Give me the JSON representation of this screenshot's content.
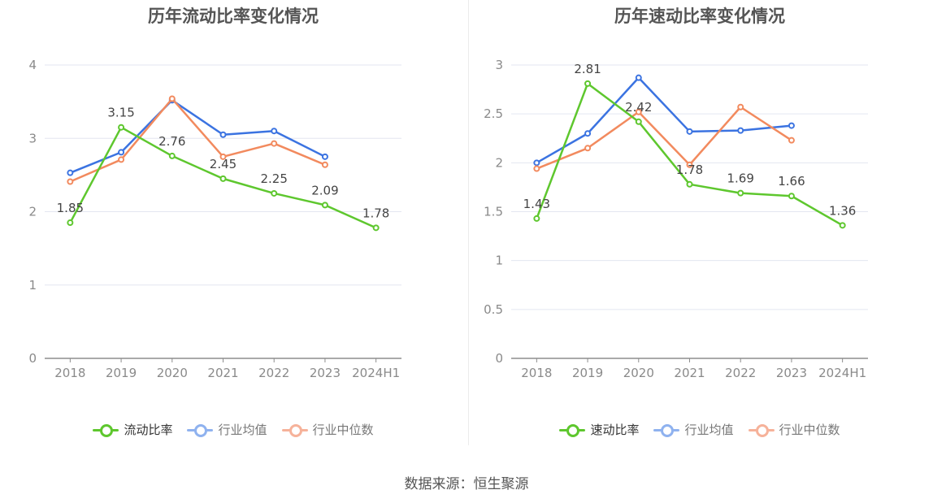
{
  "charts": [
    {
      "title": "历年流动比率变化情况",
      "legend": [
        {
          "label": "流动比率",
          "color": "#5ec72e",
          "dim": false
        },
        {
          "label": "行业均值",
          "color": "#8fb2ef",
          "dim": true
        },
        {
          "label": "行业中位数",
          "color": "#f6b29a",
          "dim": true
        }
      ]
    },
    {
      "title": "历年速动比率变化情况",
      "legend": [
        {
          "label": "速动比率",
          "color": "#5ec72e",
          "dim": false
        },
        {
          "label": "行业均值",
          "color": "#8fb2ef",
          "dim": true
        },
        {
          "label": "行业中位数",
          "color": "#f6b29a",
          "dim": true
        }
      ]
    }
  ],
  "source": "数据来源：恒生聚源",
  "chart_data": [
    {
      "type": "line",
      "title": "历年流动比率变化情况",
      "categories": [
        "2018",
        "2019",
        "2020",
        "2021",
        "2022",
        "2023",
        "2024H1"
      ],
      "ylim": [
        0,
        4
      ],
      "yticks": [
        "0",
        "1",
        "2",
        "3",
        "4"
      ],
      "grid": true,
      "legend_position": "bottom",
      "series": [
        {
          "name": "流动比率",
          "color": "#5ec72e",
          "labels": true,
          "values": [
            1.85,
            3.15,
            2.76,
            2.45,
            2.25,
            2.09,
            1.78
          ],
          "value_labels": [
            "1.85",
            "3.15",
            "2.76",
            "2.45",
            "2.25",
            "2.09",
            "1.78"
          ]
        },
        {
          "name": "行业均值",
          "color": "#3b73e1",
          "labels": false,
          "values": [
            2.53,
            2.81,
            3.52,
            3.05,
            3.1,
            2.75,
            null
          ]
        },
        {
          "name": "行业中位数",
          "color": "#f28a5e",
          "labels": false,
          "values": [
            2.41,
            2.71,
            3.54,
            2.75,
            2.93,
            2.64,
            null
          ]
        }
      ]
    },
    {
      "type": "line",
      "title": "历年速动比率变化情况",
      "categories": [
        "2018",
        "2019",
        "2020",
        "2021",
        "2022",
        "2023",
        "2024H1"
      ],
      "ylim": [
        0,
        3
      ],
      "yticks": [
        "0",
        "0.5",
        "1",
        "1.5",
        "2",
        "2.5",
        "3"
      ],
      "grid": true,
      "legend_position": "bottom",
      "series": [
        {
          "name": "速动比率",
          "color": "#5ec72e",
          "labels": true,
          "values": [
            1.43,
            2.81,
            2.42,
            1.78,
            1.69,
            1.66,
            1.36
          ],
          "value_labels": [
            "1.43",
            "2.81",
            "2.42",
            "1.78",
            "1.69",
            "1.66",
            "1.36"
          ]
        },
        {
          "name": "行业均值",
          "color": "#3b73e1",
          "labels": false,
          "values": [
            2.0,
            2.3,
            2.87,
            2.32,
            2.33,
            2.38,
            null
          ]
        },
        {
          "name": "行业中位数",
          "color": "#f28a5e",
          "labels": false,
          "values": [
            1.94,
            2.15,
            2.52,
            1.98,
            2.57,
            2.23,
            null
          ]
        }
      ]
    }
  ]
}
